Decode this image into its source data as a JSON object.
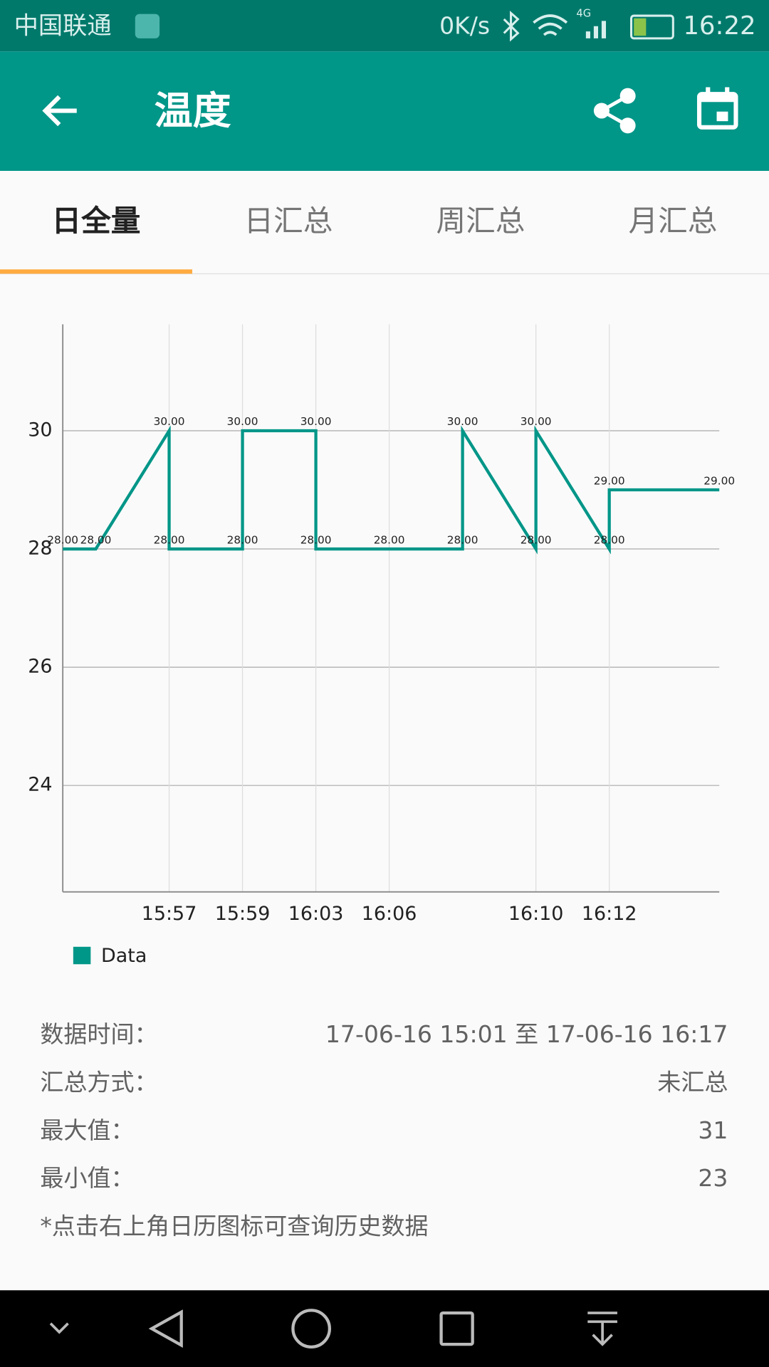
{
  "status_bar": {
    "carrier": "中国联通",
    "speed": "0K/s",
    "network": "4G",
    "time": "16:22"
  },
  "app_bar": {
    "title": "温度"
  },
  "tabs": {
    "items": [
      "日全量",
      "日汇总",
      "周汇总",
      "月汇总"
    ],
    "active": 0
  },
  "chart_data": {
    "type": "line",
    "x": [
      0.1,
      1,
      3,
      3,
      5,
      5,
      7,
      7,
      9,
      11,
      11,
      13,
      13,
      15,
      15,
      18
    ],
    "series": [
      {
        "name": "Data",
        "color": "#009688",
        "values": [
          28,
          28,
          30,
          28,
          28,
          30,
          30,
          28,
          28,
          28,
          30,
          28,
          30,
          28,
          29,
          29
        ],
        "value_labels": [
          "28.00",
          "28.00",
          "30.00",
          "28.00",
          "28.00",
          "30.00",
          "30.00",
          "28.00",
          "28.00",
          "28.00",
          "30.00",
          "28.00",
          "30.00",
          "28.00",
          "29.00",
          "29.00"
        ]
      }
    ],
    "xlim": [
      0.1,
      18
    ],
    "xticks": [
      {
        "value": 3,
        "label": "15:57"
      },
      {
        "value": 5,
        "label": "15:59"
      },
      {
        "value": 7,
        "label": "16:03"
      },
      {
        "value": 9,
        "label": "16:06"
      },
      {
        "value": 13,
        "label": "16:10"
      },
      {
        "value": 15,
        "label": "16:12"
      }
    ],
    "ylim": [
      22.2,
      31.8
    ],
    "yticks": [
      24,
      26,
      28,
      30
    ],
    "grid": true,
    "legend": "bottom-left"
  },
  "info": {
    "rows": [
      [
        "数据时间：",
        "17-06-16 15:01 至 17-06-16 16:17"
      ],
      [
        "汇总方式：",
        "未汇总"
      ],
      [
        "最大值：",
        "31"
      ],
      [
        "最小值：",
        "23"
      ]
    ],
    "note": "*点击右上角日历图标可查询历史数据"
  }
}
